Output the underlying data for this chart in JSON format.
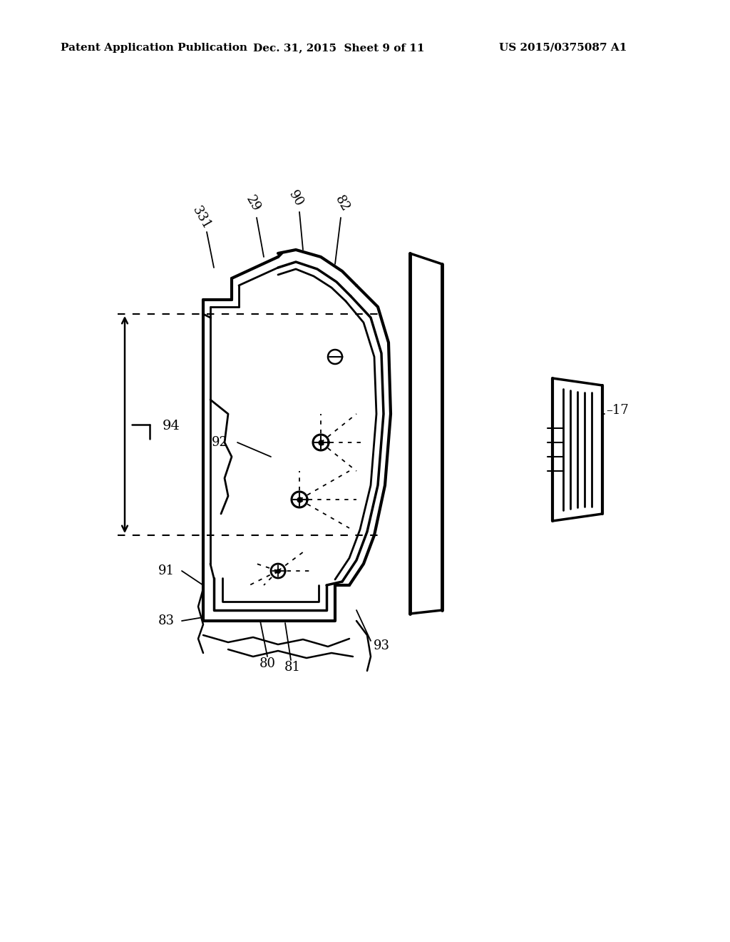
{
  "background_color": "#ffffff",
  "header_left": "Patent Application Publication",
  "header_center": "Dec. 31, 2015  Sheet 9 of 11",
  "header_right": "US 2015/0375087 A1",
  "header_fontsize": 11,
  "fig_width": 10.24,
  "fig_height": 13.2
}
